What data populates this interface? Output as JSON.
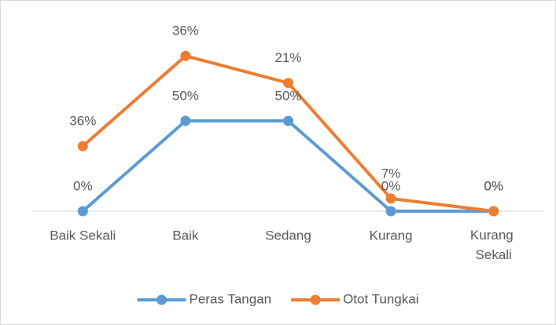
{
  "chart_data": {
    "type": "line",
    "stacked": true,
    "categories": [
      "Baik Sekali",
      "Baik",
      "Sedang",
      "Kurang",
      "Kurang Sekali"
    ],
    "series": [
      {
        "name": "Peras Tangan",
        "color": "#5b9bd5",
        "values": [
          0,
          50,
          50,
          0,
          0
        ],
        "value_labels": [
          "0%",
          "50%",
          "50%",
          "0%",
          "0%"
        ]
      },
      {
        "name": "Otot Tungkai",
        "color": "#ed7d31",
        "values": [
          36,
          36,
          21,
          7,
          0
        ],
        "value_labels": [
          "36%",
          "36%",
          "21%",
          "7%",
          "0%"
        ]
      }
    ],
    "ylim": [
      0,
      100
    ],
    "legend": "bottom"
  }
}
